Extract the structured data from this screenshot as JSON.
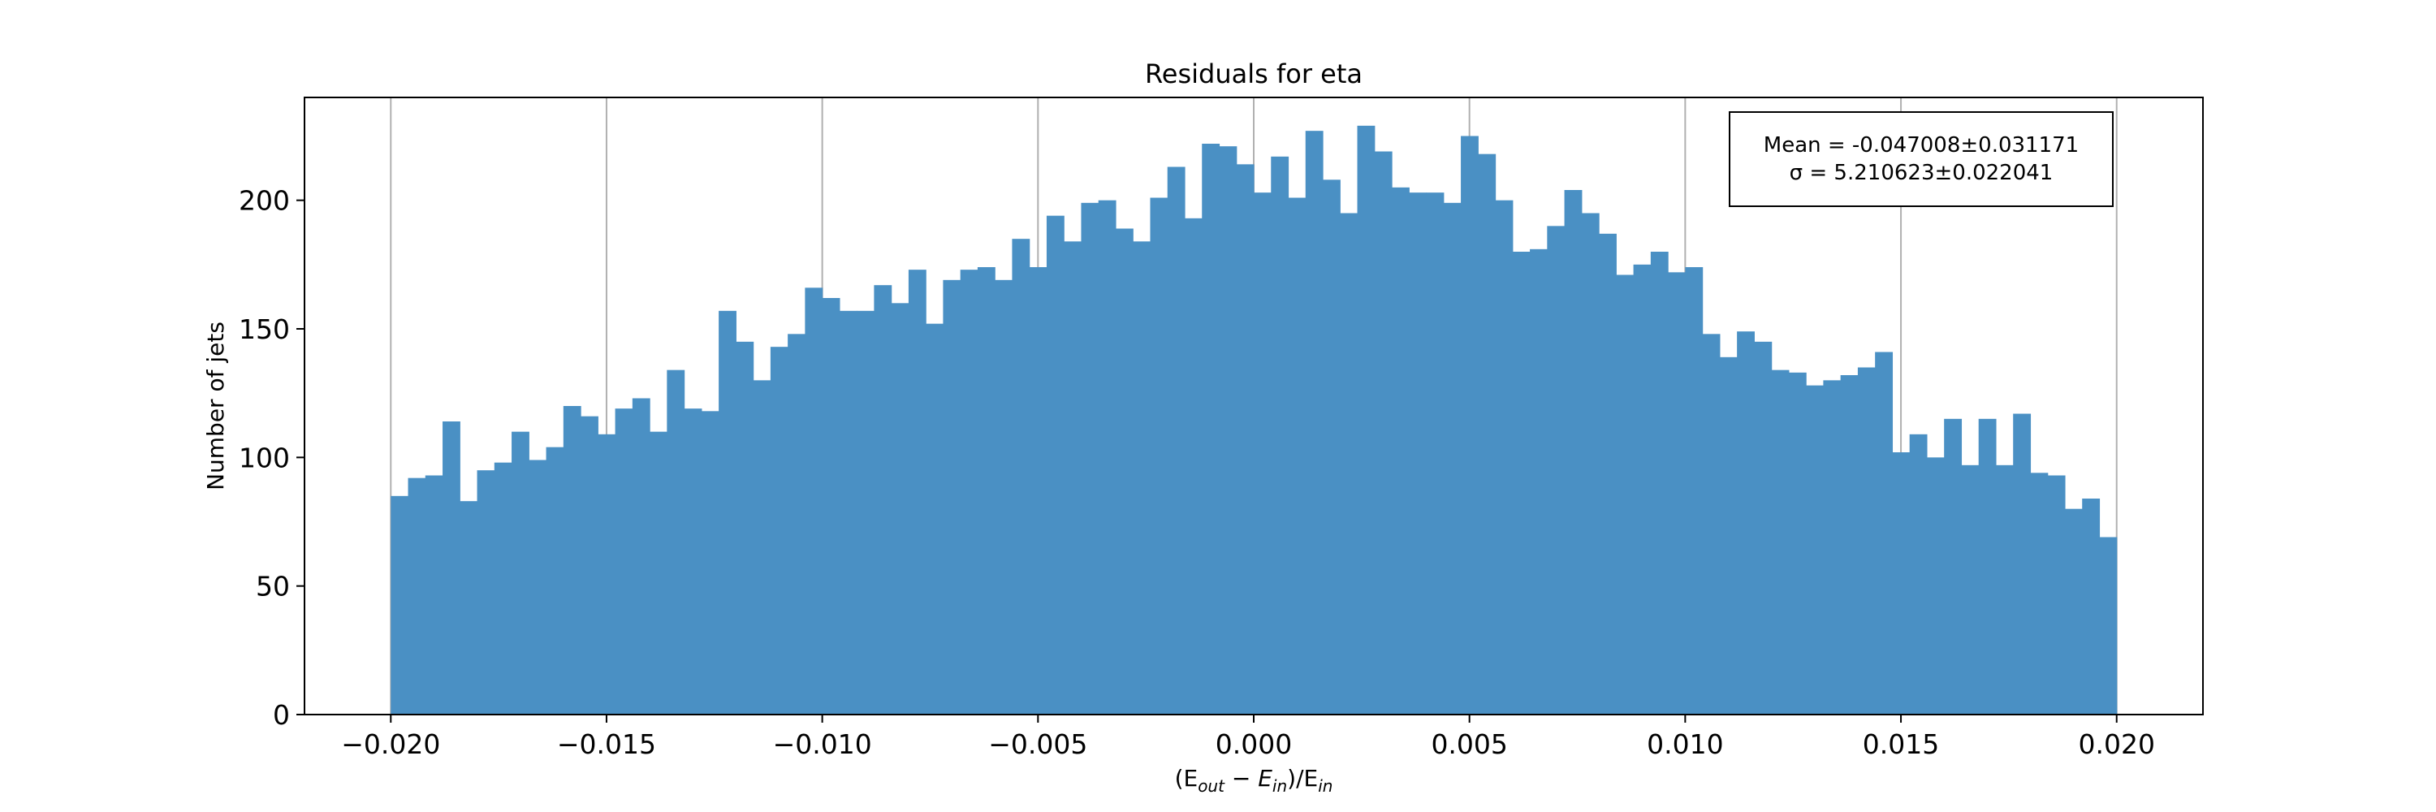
{
  "chart_data": {
    "type": "bar",
    "title": "Residuals for eta",
    "xlabel_parts": [
      "(E",
      "out",
      " − E",
      "in",
      ")/E",
      "in"
    ],
    "ylabel": "Number of jets",
    "xlim": [
      -0.022,
      0.022
    ],
    "ylim": [
      0,
      240
    ],
    "bin_edges_range": [
      -0.02,
      0.02
    ],
    "bin_count": 100,
    "x_ticks": [
      "−0.020",
      "−0.015",
      "−0.010",
      "−0.005",
      "0.000",
      "0.005",
      "0.010",
      "0.015",
      "0.020"
    ],
    "x_tick_values": [
      -0.02,
      -0.015,
      -0.01,
      -0.005,
      0.0,
      0.005,
      0.01,
      0.015,
      0.02
    ],
    "y_ticks": [
      "0",
      "50",
      "100",
      "150",
      "200"
    ],
    "y_tick_values": [
      0,
      50,
      100,
      150,
      200
    ],
    "grid": "vertical",
    "bar_color": "#4a90c4",
    "grid_color": "#b0b0b0",
    "stats_box": {
      "mean_line": "Mean = -0.047008±0.031171",
      "sigma_line": "σ = 5.210623±0.022041",
      "placement": "top-right"
    },
    "values": [
      85,
      92,
      93,
      114,
      83,
      95,
      98,
      110,
      99,
      104,
      120,
      116,
      109,
      119,
      123,
      110,
      134,
      119,
      118,
      157,
      145,
      130,
      143,
      148,
      166,
      162,
      157,
      157,
      167,
      160,
      173,
      152,
      169,
      173,
      174,
      169,
      185,
      174,
      194,
      184,
      199,
      200,
      189,
      184,
      201,
      213,
      193,
      222,
      221,
      214,
      203,
      217,
      201,
      227,
      208,
      195,
      229,
      219,
      205,
      203,
      203,
      199,
      225,
      218,
      200,
      180,
      181,
      190,
      204,
      195,
      187,
      171,
      175,
      180,
      172,
      174,
      148,
      139,
      149,
      145,
      134,
      133,
      128,
      130,
      132,
      135,
      141,
      102,
      109,
      100,
      115,
      97,
      115,
      97,
      117,
      94,
      93,
      80,
      84,
      69
    ]
  }
}
